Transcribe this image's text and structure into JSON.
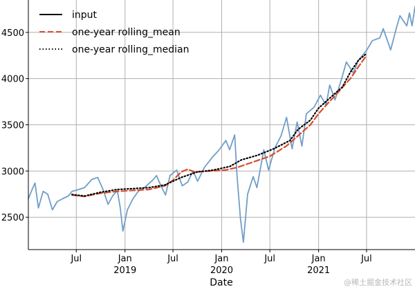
{
  "chart_data": {
    "type": "line",
    "xlabel": "Date",
    "xlim": [
      "2018-01-01",
      "2021-12-31"
    ],
    "ylim": [
      2150,
      4850
    ],
    "grid": true,
    "legend_position": "top-left",
    "x_ticks": [
      {
        "date": "2018-07-01",
        "label": "Jul",
        "sublabel": ""
      },
      {
        "date": "2019-01-01",
        "label": "Jan",
        "sublabel": "2019"
      },
      {
        "date": "2019-07-01",
        "label": "Jul",
        "sublabel": ""
      },
      {
        "date": "2020-01-01",
        "label": "Jan",
        "sublabel": "2020"
      },
      {
        "date": "2020-07-01",
        "label": "Jul",
        "sublabel": ""
      },
      {
        "date": "2021-01-01",
        "label": "Jan",
        "sublabel": "2021"
      },
      {
        "date": "2021-07-01",
        "label": "Jul",
        "sublabel": ""
      }
    ],
    "y_ticks": [
      2500,
      3000,
      3500,
      4000,
      4500
    ],
    "series": [
      {
        "name": "input",
        "style": "solid",
        "color": "#6f9ec8",
        "legend_color": "#000000",
        "points": [
          [
            "2018-01-01",
            2700
          ],
          [
            "2018-01-15",
            2800
          ],
          [
            "2018-01-26",
            2870
          ],
          [
            "2018-02-08",
            2600
          ],
          [
            "2018-02-26",
            2780
          ],
          [
            "2018-03-15",
            2750
          ],
          [
            "2018-04-02",
            2580
          ],
          [
            "2018-04-20",
            2670
          ],
          [
            "2018-05-10",
            2700
          ],
          [
            "2018-06-01",
            2730
          ],
          [
            "2018-06-15",
            2780
          ],
          [
            "2018-07-10",
            2800
          ],
          [
            "2018-08-01",
            2820
          ],
          [
            "2018-08-29",
            2910
          ],
          [
            "2018-09-20",
            2930
          ],
          [
            "2018-10-10",
            2800
          ],
          [
            "2018-10-29",
            2640
          ],
          [
            "2018-11-15",
            2730
          ],
          [
            "2018-12-03",
            2790
          ],
          [
            "2018-12-14",
            2600
          ],
          [
            "2018-12-24",
            2350
          ],
          [
            "2019-01-10",
            2580
          ],
          [
            "2019-01-31",
            2700
          ],
          [
            "2019-02-20",
            2780
          ],
          [
            "2019-03-15",
            2820
          ],
          [
            "2019-04-15",
            2900
          ],
          [
            "2019-04-30",
            2950
          ],
          [
            "2019-05-15",
            2850
          ],
          [
            "2019-06-03",
            2740
          ],
          [
            "2019-06-20",
            2950
          ],
          [
            "2019-07-15",
            3010
          ],
          [
            "2019-08-05",
            2840
          ],
          [
            "2019-08-26",
            2880
          ],
          [
            "2019-09-15",
            3000
          ],
          [
            "2019-10-02",
            2890
          ],
          [
            "2019-10-28",
            3040
          ],
          [
            "2019-11-27",
            3150
          ],
          [
            "2019-12-20",
            3220
          ],
          [
            "2020-01-17",
            3330
          ],
          [
            "2020-01-31",
            3230
          ],
          [
            "2020-02-19",
            3390
          ],
          [
            "2020-02-28",
            2950
          ],
          [
            "2020-03-12",
            2480
          ],
          [
            "2020-03-23",
            2230
          ],
          [
            "2020-04-08",
            2750
          ],
          [
            "2020-04-29",
            2940
          ],
          [
            "2020-05-13",
            2820
          ],
          [
            "2020-06-08",
            3230
          ],
          [
            "2020-06-26",
            3010
          ],
          [
            "2020-07-20",
            3250
          ],
          [
            "2020-08-12",
            3380
          ],
          [
            "2020-09-02",
            3580
          ],
          [
            "2020-09-23",
            3240
          ],
          [
            "2020-10-12",
            3530
          ],
          [
            "2020-10-30",
            3270
          ],
          [
            "2020-11-16",
            3620
          ],
          [
            "2020-12-15",
            3690
          ],
          [
            "2021-01-08",
            3820
          ],
          [
            "2021-01-29",
            3710
          ],
          [
            "2021-02-12",
            3930
          ],
          [
            "2021-03-04",
            3770
          ],
          [
            "2021-03-26",
            3970
          ],
          [
            "2021-04-16",
            4180
          ],
          [
            "2021-05-12",
            4060
          ],
          [
            "2021-06-01",
            4200
          ],
          [
            "2021-06-30",
            4300
          ],
          [
            "2021-07-23",
            4410
          ],
          [
            "2021-08-20",
            4440
          ],
          [
            "2021-09-02",
            4540
          ],
          [
            "2021-09-30",
            4310
          ],
          [
            "2021-10-22",
            4550
          ],
          [
            "2021-11-04",
            4680
          ],
          [
            "2021-11-30",
            4570
          ],
          [
            "2021-12-10",
            4710
          ],
          [
            "2021-12-20",
            4570
          ],
          [
            "2021-12-31",
            4780
          ]
        ]
      },
      {
        "name": "one-year rolling_mean",
        "style": "dashed",
        "color": "#d94a2b",
        "points": [
          [
            "2018-06-15",
            2740
          ],
          [
            "2018-08-01",
            2725
          ],
          [
            "2018-10-01",
            2760
          ],
          [
            "2018-12-01",
            2780
          ],
          [
            "2019-02-01",
            2790
          ],
          [
            "2019-04-01",
            2800
          ],
          [
            "2019-06-01",
            2840
          ],
          [
            "2019-07-01",
            2900
          ],
          [
            "2019-08-01",
            2990
          ],
          [
            "2019-08-26",
            3020
          ],
          [
            "2019-09-20",
            2990
          ],
          [
            "2019-11-15",
            3000
          ],
          [
            "2020-01-15",
            3010
          ],
          [
            "2020-03-01",
            3040
          ],
          [
            "2020-05-01",
            3100
          ],
          [
            "2020-07-01",
            3160
          ],
          [
            "2020-09-01",
            3270
          ],
          [
            "2020-10-15",
            3380
          ],
          [
            "2020-12-01",
            3500
          ],
          [
            "2021-01-01",
            3620
          ],
          [
            "2021-02-01",
            3720
          ],
          [
            "2021-03-15",
            3850
          ],
          [
            "2021-05-01",
            4000
          ],
          [
            "2021-06-01",
            4130
          ],
          [
            "2021-07-01",
            4250
          ]
        ]
      },
      {
        "name": "one-year rolling_median",
        "style": "dotted",
        "color": "#000000",
        "points": [
          [
            "2018-06-15",
            2745
          ],
          [
            "2018-08-01",
            2730
          ],
          [
            "2018-10-01",
            2770
          ],
          [
            "2018-12-01",
            2800
          ],
          [
            "2019-02-01",
            2810
          ],
          [
            "2019-04-01",
            2820
          ],
          [
            "2019-06-01",
            2850
          ],
          [
            "2019-08-01",
            2930
          ],
          [
            "2019-10-01",
            2990
          ],
          [
            "2019-12-01",
            3010
          ],
          [
            "2020-02-01",
            3050
          ],
          [
            "2020-03-15",
            3120
          ],
          [
            "2020-05-15",
            3170
          ],
          [
            "2020-07-15",
            3240
          ],
          [
            "2020-09-15",
            3330
          ],
          [
            "2020-10-15",
            3450
          ],
          [
            "2020-12-01",
            3550
          ],
          [
            "2021-01-01",
            3680
          ],
          [
            "2021-02-01",
            3760
          ],
          [
            "2021-04-01",
            3910
          ],
          [
            "2021-05-01",
            4070
          ],
          [
            "2021-06-01",
            4200
          ],
          [
            "2021-07-01",
            4270
          ]
        ]
      }
    ]
  },
  "watermark": "@稀土掘金技术社区"
}
